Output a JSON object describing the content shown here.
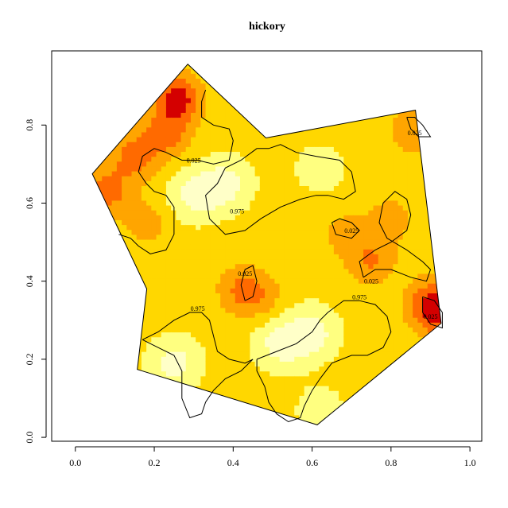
{
  "chart_data": {
    "type": "heatmap",
    "title": "hickory",
    "xlabel": "",
    "ylabel": "",
    "xlim": [
      -0.06,
      1.03
    ],
    "ylim": [
      -0.01,
      0.99
    ],
    "x_ticks": [
      0.0,
      0.2,
      0.4,
      0.6,
      0.8,
      1.0
    ],
    "x_tick_labels": [
      "0.0",
      "0.2",
      "0.4",
      "0.6",
      "0.8",
      "1.0"
    ],
    "y_ticks": [
      0.0,
      0.2,
      0.4,
      0.6,
      0.8
    ],
    "y_tick_labels": [
      "0.0",
      "0.2",
      "0.4",
      "0.6",
      "0.8"
    ],
    "window_polygon": [
      [
        0.157,
        0.174
      ],
      [
        0.181,
        0.38
      ],
      [
        0.043,
        0.675
      ],
      [
        0.285,
        0.956
      ],
      [
        0.483,
        0.767
      ],
      [
        0.862,
        0.838
      ],
      [
        0.927,
        0.292
      ],
      [
        0.613,
        0.032
      ]
    ],
    "color_scale": [
      "#FFFFC8",
      "#FFFF80",
      "#FFD700",
      "#FFA500",
      "#FF6A00",
      "#D40000"
    ],
    "contour_levels": [
      "0.025",
      "0.975"
    ],
    "intensity_peaks": [
      {
        "x": 0.26,
        "y": 0.87,
        "level": 5
      },
      {
        "x": 0.08,
        "y": 0.63,
        "level": 4
      },
      {
        "x": 0.15,
        "y": 0.72,
        "level": 4
      },
      {
        "x": 0.23,
        "y": 0.78,
        "level": 4
      },
      {
        "x": 0.18,
        "y": 0.55,
        "level": 3
      },
      {
        "x": 0.42,
        "y": 0.38,
        "level": 3.5
      },
      {
        "x": 0.47,
        "y": 0.36,
        "level": 3
      },
      {
        "x": 0.75,
        "y": 0.45,
        "level": 3.5
      },
      {
        "x": 0.69,
        "y": 0.52,
        "level": 3
      },
      {
        "x": 0.8,
        "y": 0.56,
        "level": 3
      },
      {
        "x": 0.9,
        "y": 0.35,
        "level": 4
      },
      {
        "x": 0.86,
        "y": 0.79,
        "level": 3.5
      },
      {
        "x": 0.92,
        "y": 0.31,
        "level": 4
      }
    ],
    "low_regions": [
      {
        "x": 0.3,
        "y": 0.62,
        "level": 0.2
      },
      {
        "x": 0.38,
        "y": 0.65,
        "level": 0.1
      },
      {
        "x": 0.52,
        "y": 0.24,
        "level": 0.1
      },
      {
        "x": 0.6,
        "y": 0.27,
        "level": 0.1
      },
      {
        "x": 0.25,
        "y": 0.19,
        "level": 0.1
      },
      {
        "x": 0.62,
        "y": 0.07,
        "level": 1.0
      },
      {
        "x": 0.62,
        "y": 0.69,
        "level": 1.0
      }
    ],
    "contours": [
      {
        "label": "0.025",
        "label_pos": [
          0.3,
          0.71
        ],
        "points": [
          [
            0.33,
            0.89
          ],
          [
            0.32,
            0.86
          ],
          [
            0.32,
            0.82
          ],
          [
            0.35,
            0.8
          ],
          [
            0.39,
            0.79
          ],
          [
            0.4,
            0.76
          ],
          [
            0.39,
            0.71
          ],
          [
            0.35,
            0.7
          ],
          [
            0.31,
            0.71
          ],
          [
            0.27,
            0.71
          ],
          [
            0.23,
            0.73
          ],
          [
            0.2,
            0.74
          ],
          [
            0.17,
            0.72
          ],
          [
            0.16,
            0.68
          ],
          [
            0.18,
            0.65
          ],
          [
            0.2,
            0.63
          ],
          [
            0.23,
            0.62
          ],
          [
            0.25,
            0.59
          ],
          [
            0.25,
            0.52
          ],
          [
            0.23,
            0.48
          ],
          [
            0.19,
            0.47
          ],
          [
            0.16,
            0.49
          ],
          [
            0.14,
            0.51
          ],
          [
            0.11,
            0.52
          ]
        ]
      },
      {
        "label": "0.975",
        "label_pos": [
          0.41,
          0.58
        ],
        "points": [
          [
            0.46,
            0.74
          ],
          [
            0.42,
            0.71
          ],
          [
            0.38,
            0.69
          ],
          [
            0.36,
            0.65
          ],
          [
            0.33,
            0.62
          ],
          [
            0.34,
            0.56
          ],
          [
            0.38,
            0.52
          ],
          [
            0.43,
            0.53
          ],
          [
            0.47,
            0.56
          ],
          [
            0.52,
            0.59
          ],
          [
            0.57,
            0.61
          ],
          [
            0.61,
            0.62
          ],
          [
            0.64,
            0.62
          ],
          [
            0.68,
            0.61
          ],
          [
            0.71,
            0.63
          ],
          [
            0.7,
            0.68
          ],
          [
            0.67,
            0.71
          ],
          [
            0.61,
            0.72
          ],
          [
            0.56,
            0.73
          ],
          [
            0.52,
            0.75
          ],
          [
            0.49,
            0.74
          ],
          [
            0.46,
            0.74
          ]
        ]
      },
      {
        "label": "0.025",
        "label_pos": [
          0.7,
          0.53
        ],
        "points": [
          [
            0.65,
            0.55
          ],
          [
            0.66,
            0.52
          ],
          [
            0.7,
            0.51
          ],
          [
            0.72,
            0.53
          ],
          [
            0.7,
            0.55
          ],
          [
            0.67,
            0.56
          ],
          [
            0.65,
            0.55
          ]
        ]
      },
      {
        "label": "0.025",
        "label_pos": [
          0.75,
          0.4
        ],
        "points": [
          [
            0.73,
            0.41
          ],
          [
            0.72,
            0.45
          ],
          [
            0.76,
            0.48
          ],
          [
            0.8,
            0.5
          ],
          [
            0.84,
            0.53
          ],
          [
            0.85,
            0.57
          ],
          [
            0.84,
            0.61
          ],
          [
            0.81,
            0.63
          ],
          [
            0.78,
            0.6
          ],
          [
            0.77,
            0.55
          ],
          [
            0.79,
            0.51
          ],
          [
            0.84,
            0.48
          ],
          [
            0.88,
            0.45
          ],
          [
            0.9,
            0.43
          ],
          [
            0.89,
            0.4
          ],
          [
            0.85,
            0.41
          ],
          [
            0.8,
            0.43
          ],
          [
            0.76,
            0.43
          ],
          [
            0.73,
            0.41
          ]
        ]
      },
      {
        "label": "0.025",
        "label_pos": [
          0.43,
          0.42
        ],
        "points": [
          [
            0.43,
            0.35
          ],
          [
            0.42,
            0.39
          ],
          [
            0.43,
            0.43
          ],
          [
            0.45,
            0.44
          ],
          [
            0.46,
            0.4
          ],
          [
            0.45,
            0.36
          ],
          [
            0.43,
            0.35
          ]
        ]
      },
      {
        "label": "0.975",
        "label_pos": [
          0.31,
          0.33
        ],
        "points": [
          [
            0.17,
            0.25
          ],
          [
            0.21,
            0.27
          ],
          [
            0.25,
            0.3
          ],
          [
            0.29,
            0.32
          ],
          [
            0.32,
            0.32
          ],
          [
            0.34,
            0.3
          ],
          [
            0.35,
            0.26
          ],
          [
            0.36,
            0.22
          ],
          [
            0.39,
            0.2
          ],
          [
            0.43,
            0.19
          ],
          [
            0.45,
            0.2
          ],
          [
            0.42,
            0.17
          ],
          [
            0.38,
            0.15
          ],
          [
            0.35,
            0.12
          ],
          [
            0.33,
            0.09
          ],
          [
            0.32,
            0.06
          ],
          [
            0.29,
            0.05
          ],
          [
            0.27,
            0.1
          ],
          [
            0.27,
            0.17
          ],
          [
            0.25,
            0.21
          ],
          [
            0.21,
            0.23
          ],
          [
            0.17,
            0.25
          ]
        ]
      },
      {
        "label": "0.975",
        "label_pos": [
          0.72,
          0.36
        ],
        "points": [
          [
            0.46,
            0.2
          ],
          [
            0.51,
            0.22
          ],
          [
            0.56,
            0.24
          ],
          [
            0.6,
            0.27
          ],
          [
            0.62,
            0.3
          ],
          [
            0.64,
            0.32
          ],
          [
            0.68,
            0.35
          ],
          [
            0.72,
            0.35
          ],
          [
            0.76,
            0.34
          ],
          [
            0.79,
            0.31
          ],
          [
            0.8,
            0.27
          ],
          [
            0.78,
            0.23
          ],
          [
            0.74,
            0.21
          ],
          [
            0.7,
            0.21
          ],
          [
            0.65,
            0.19
          ],
          [
            0.62,
            0.15
          ],
          [
            0.6,
            0.12
          ],
          [
            0.58,
            0.08
          ],
          [
            0.57,
            0.05
          ],
          [
            0.54,
            0.04
          ],
          [
            0.51,
            0.06
          ],
          [
            0.49,
            0.09
          ],
          [
            0.48,
            0.13
          ],
          [
            0.46,
            0.17
          ],
          [
            0.46,
            0.2
          ]
        ]
      },
      {
        "label": "0.025",
        "label_pos": [
          0.9,
          0.31
        ],
        "points": [
          [
            0.88,
            0.36
          ],
          [
            0.88,
            0.32
          ],
          [
            0.9,
            0.29
          ],
          [
            0.93,
            0.28
          ],
          [
            0.93,
            0.32
          ],
          [
            0.91,
            0.35
          ],
          [
            0.88,
            0.36
          ]
        ]
      },
      {
        "label": "0.025",
        "label_pos": [
          0.86,
          0.78
        ],
        "points": [
          [
            0.84,
            0.82
          ],
          [
            0.85,
            0.79
          ],
          [
            0.87,
            0.77
          ],
          [
            0.9,
            0.77
          ],
          [
            0.88,
            0.8
          ],
          [
            0.86,
            0.82
          ],
          [
            0.84,
            0.82
          ]
        ]
      }
    ]
  }
}
